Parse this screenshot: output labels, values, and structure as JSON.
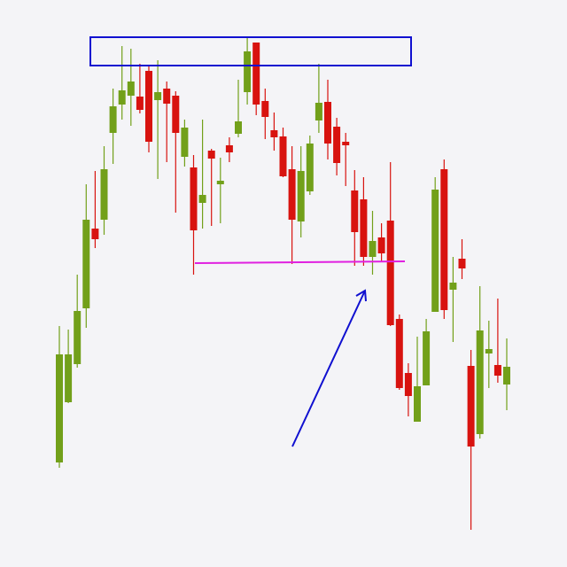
{
  "chart_data": {
    "type": "candlestick",
    "ylim": [
      0,
      640
    ],
    "up_color": "#72a01a",
    "down_color": "#d8130f",
    "open": [
      118,
      186,
      229,
      292,
      382,
      392,
      490,
      522,
      532,
      531,
      560,
      527,
      540,
      532,
      463,
      451,
      411,
      470,
      432,
      476,
      489,
      536,
      592,
      526,
      493,
      486,
      449,
      390,
      424,
      504,
      525,
      497,
      480,
      425,
      415,
      350,
      372,
      391,
      280,
      219,
      164,
      205,
      288,
      449,
      313,
      348,
      227,
      150,
      241,
      228,
      206
    ],
    "high": [
      272,
      268,
      330,
      432,
      447,
      475,
      540,
      588,
      585,
      568,
      565,
      572,
      548,
      537,
      505,
      465,
      505,
      472,
      462,
      485,
      550,
      598,
      592,
      540,
      513,
      496,
      475,
      475,
      487,
      568,
      550,
      507,
      490,
      448,
      440,
      402,
      388,
      457,
      285,
      230,
      260,
      280,
      440,
      460,
      350,
      370,
      245,
      317,
      278,
      303,
      258
    ],
    "low": [
      112,
      185,
      225,
      270,
      360,
      375,
      455,
      505,
      498,
      512,
      468,
      438,
      457,
      400,
      452,
      330,
      382,
      385,
      388,
      457,
      485,
      522,
      510,
      483,
      470,
      440,
      342,
      372,
      420,
      490,
      460,
      442,
      430,
      340,
      340,
      330,
      344,
      272,
      200,
      170,
      164,
      205,
      288,
      280,
      254,
      325,
      42,
      145,
      202,
      208,
      177
    ],
    "close": [
      240,
      240,
      289,
      392,
      370,
      449,
      520,
      538,
      548,
      516,
      480,
      536,
      523,
      490,
      496,
      380,
      420,
      461,
      436,
      468,
      503,
      582,
      522,
      508,
      485,
      441,
      392,
      447,
      478,
      524,
      478,
      456,
      476,
      378,
      350,
      368,
      354,
      273,
      202,
      193,
      204,
      266,
      426,
      290,
      321,
      337,
      136,
      267,
      246,
      216,
      226
    ]
  }
}
